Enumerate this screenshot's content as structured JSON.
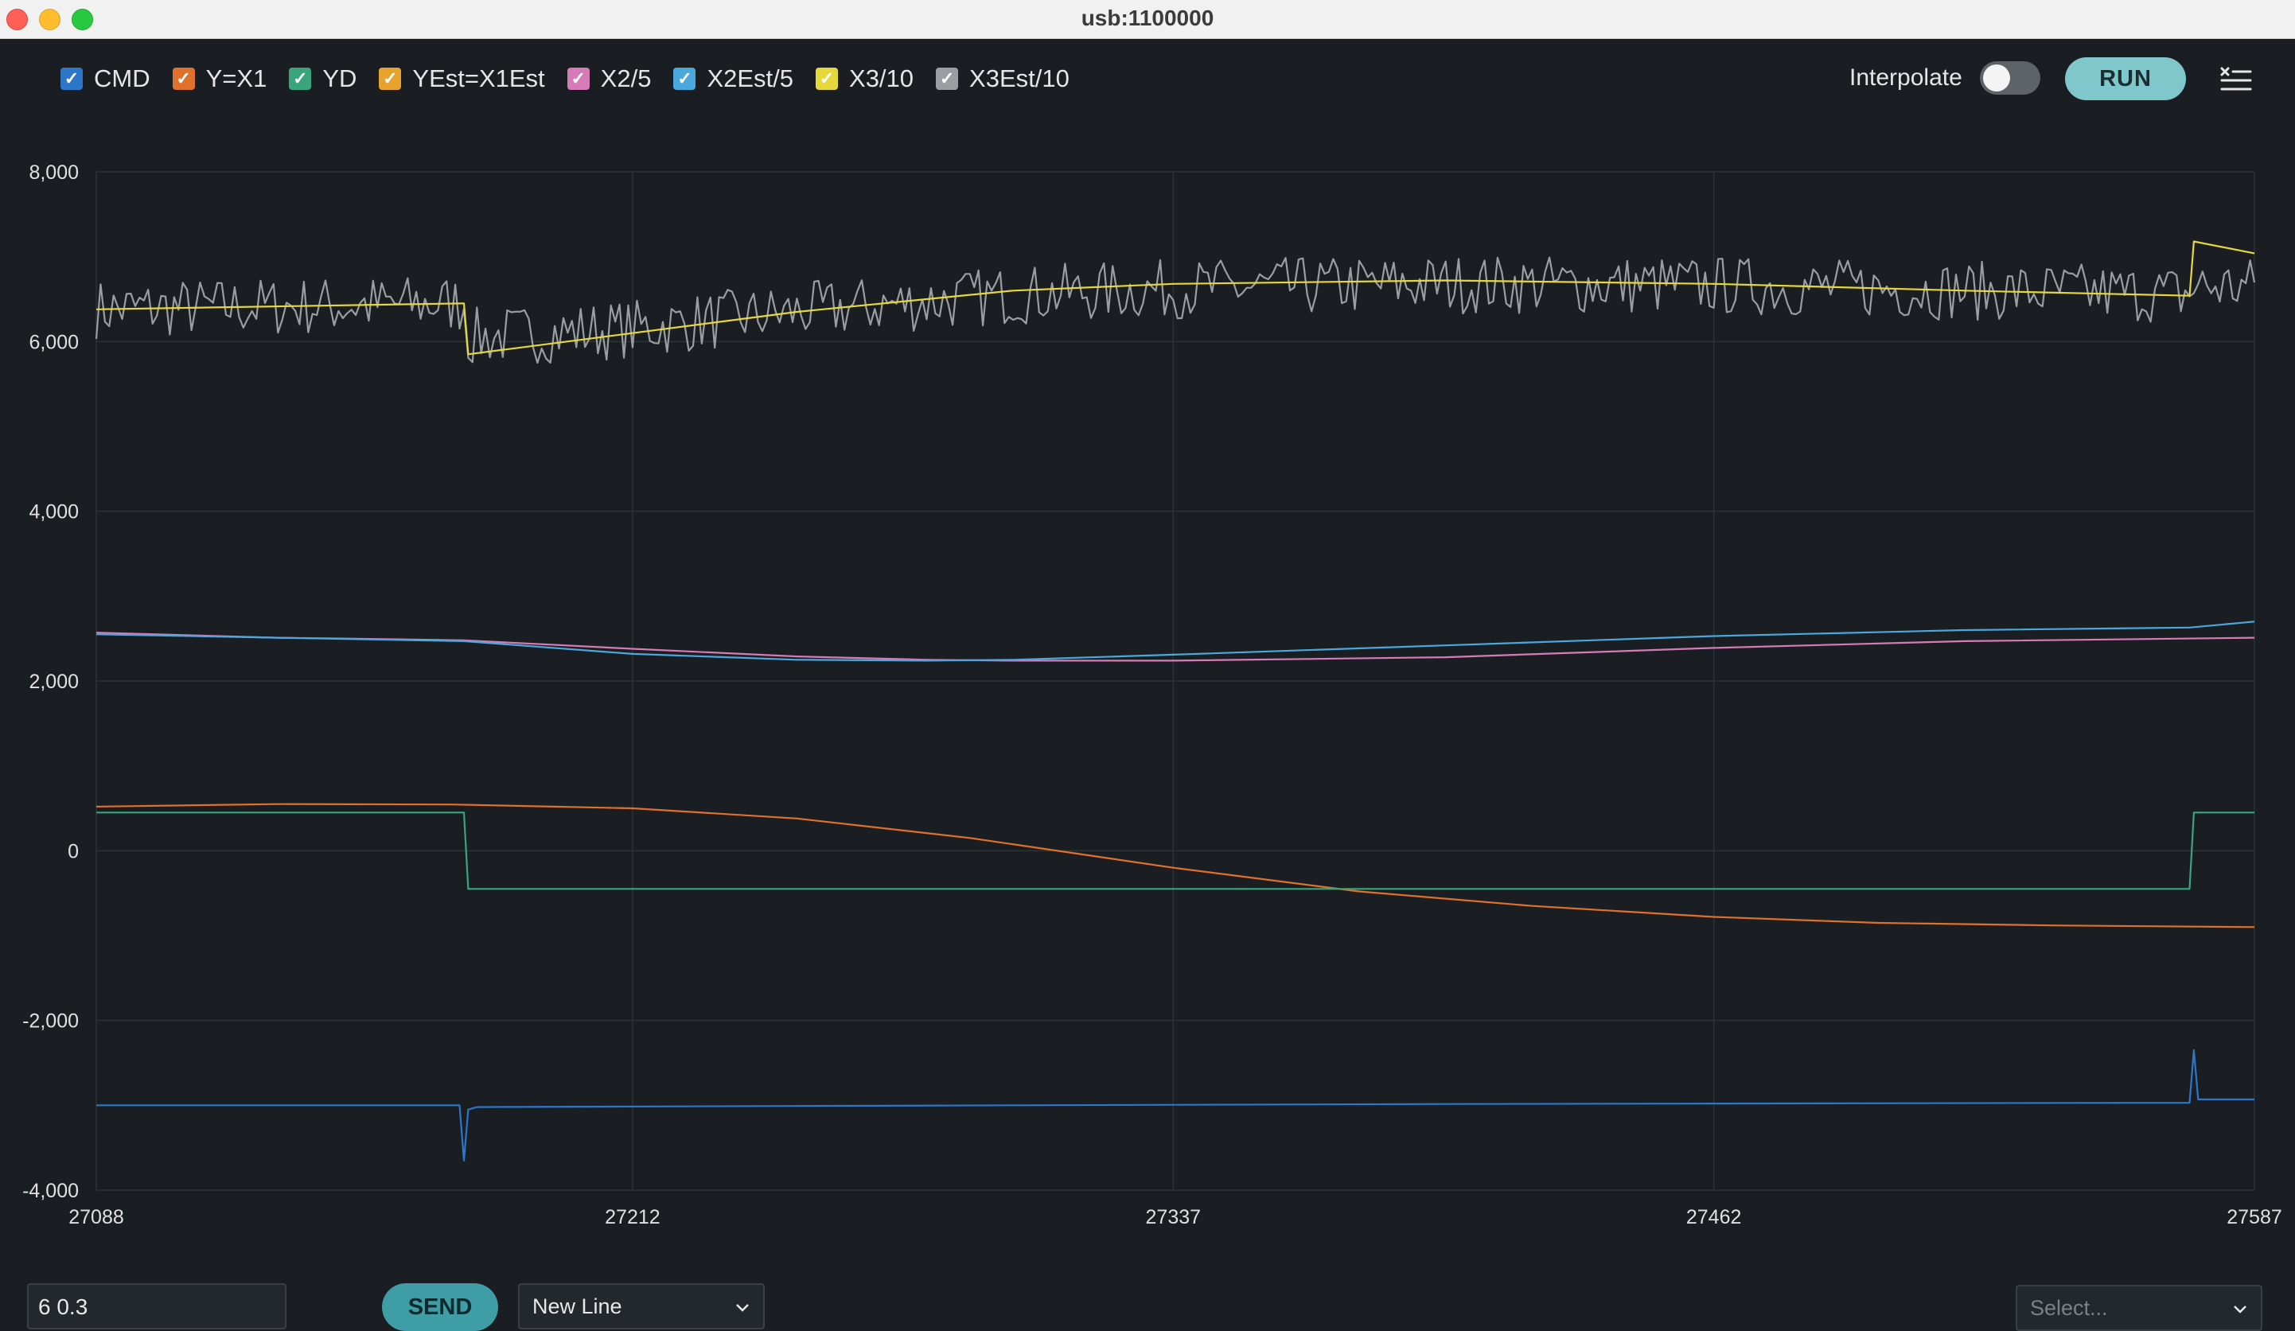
{
  "window": {
    "title": "usb:1100000"
  },
  "legend": [
    {
      "label": "CMD",
      "color": "#2d76c8"
    },
    {
      "label": "Y=X1",
      "color": "#e0712c"
    },
    {
      "label": "YD",
      "color": "#3aa57c"
    },
    {
      "label": "YEst=X1Est",
      "color": "#e8a32f"
    },
    {
      "label": "X2/5",
      "color": "#d57cb8"
    },
    {
      "label": "X2Est/5",
      "color": "#4aa8dc"
    },
    {
      "label": "X3/10",
      "color": "#e6d83a"
    },
    {
      "label": "X3Est/10",
      "color": "#9a9ea2"
    }
  ],
  "toolbar": {
    "interpolate_label": "Interpolate",
    "interpolate_on": false,
    "run_label": "RUN",
    "menu_icon": "clear-list-icon"
  },
  "chart_data": {
    "type": "line",
    "x": [
      27088,
      27212,
      27337,
      27462,
      27587
    ],
    "xlim": [
      27088,
      27587
    ],
    "ylim": [
      -4000,
      8000
    ],
    "x_ticks": [
      "27088",
      "27212",
      "27337",
      "27462",
      "27587"
    ],
    "y_ticks": [
      "8,000",
      "6,000",
      "4,000",
      "2,000",
      "0",
      "-2,000",
      "-4,000"
    ],
    "grid": true,
    "series": [
      {
        "name": "CMD",
        "color": "#2d76c8",
        "x": [
          27088,
          27172,
          27173,
          27174,
          27176,
          27300,
          27400,
          27572,
          27573,
          27574,
          27576,
          27587
        ],
        "values": [
          -3000,
          -3000,
          -3650,
          -3050,
          -3020,
          -3000,
          -2985,
          -2970,
          -2350,
          -2930,
          -2930,
          -2930
        ]
      },
      {
        "name": "Y=X1",
        "color": "#e0712c",
        "x": [
          27088,
          27130,
          27170,
          27212,
          27250,
          27290,
          27337,
          27380,
          27420,
          27462,
          27500,
          27540,
          27587
        ],
        "values": [
          520,
          550,
          545,
          500,
          380,
          150,
          -200,
          -480,
          -650,
          -780,
          -850,
          -880,
          -900
        ]
      },
      {
        "name": "YD",
        "color": "#3aa57c",
        "x": [
          27088,
          27173,
          27174,
          27572,
          27573,
          27587
        ],
        "values": [
          450,
          450,
          -450,
          -450,
          450,
          450
        ]
      },
      {
        "name": "YEst=X1Est",
        "color": "#e8a32f",
        "x": [],
        "values": []
      },
      {
        "name": "X2/5",
        "color": "#d57cb8",
        "x": [
          27088,
          27130,
          27173,
          27212,
          27250,
          27280,
          27300,
          27337,
          27400,
          27462,
          27520,
          27587
        ],
        "values": [
          2570,
          2510,
          2480,
          2380,
          2290,
          2250,
          2240,
          2240,
          2280,
          2390,
          2470,
          2510
        ]
      },
      {
        "name": "X2Est/5",
        "color": "#4aa8dc",
        "x": [
          27088,
          27130,
          27173,
          27212,
          27250,
          27280,
          27300,
          27337,
          27400,
          27462,
          27520,
          27572,
          27587
        ],
        "values": [
          2550,
          2510,
          2470,
          2320,
          2250,
          2240,
          2250,
          2310,
          2420,
          2530,
          2600,
          2630,
          2700
        ]
      },
      {
        "name": "X3/10",
        "color": "#e6d83a",
        "x": [
          27088,
          27173,
          27174,
          27212,
          27250,
          27300,
          27337,
          27400,
          27462,
          27520,
          27572,
          27573,
          27587
        ],
        "values": [
          6380,
          6450,
          5850,
          6100,
          6350,
          6600,
          6680,
          6720,
          6680,
          6600,
          6540,
          7180,
          7040
        ]
      },
      {
        "name": "X3Est/10",
        "color": "#9a9ea2",
        "noisy": true,
        "x": [
          27088,
          27173,
          27174,
          27212,
          27250,
          27300,
          27337,
          27400,
          27462,
          27520,
          27572,
          27573,
          27587
        ],
        "values": [
          6380,
          6450,
          6050,
          6150,
          6350,
          6550,
          6620,
          6680,
          6660,
          6600,
          6560,
          6650,
          6650
        ]
      }
    ]
  },
  "bottom_bar": {
    "command_value": "6 0.3",
    "send_label": "SEND",
    "line_ending": "New Line",
    "port_placeholder": "Select..."
  }
}
